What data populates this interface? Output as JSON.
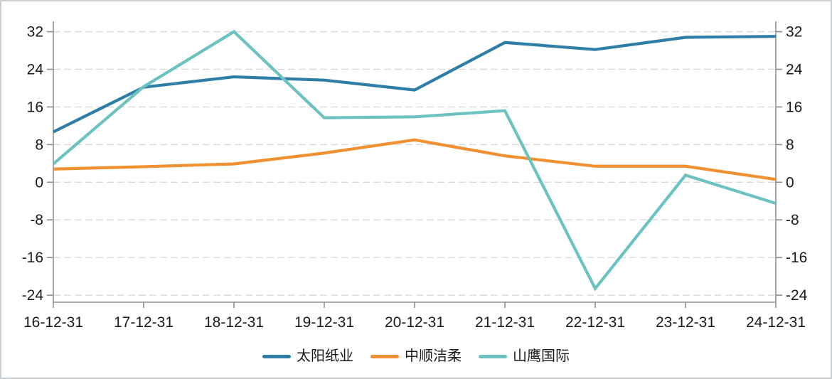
{
  "chart_data": {
    "type": "line",
    "x_labels": [
      "16-12-31",
      "17-12-31",
      "18-12-31",
      "19-12-31",
      "20-12-31",
      "21-12-31",
      "22-12-31",
      "23-12-31",
      "24-12-31"
    ],
    "y_axis": {
      "ticks": [
        32,
        24,
        16,
        8,
        0,
        -8,
        -16,
        -24
      ],
      "min": -25.5,
      "max": 34.2,
      "dual": true
    },
    "grid": {
      "horizontal": true,
      "style": "dashed"
    },
    "legend_position": "bottom-center",
    "series": [
      {
        "name": "太阳纸业",
        "color": "#2e7ea6",
        "values": [
          10.7,
          20.2,
          22.4,
          21.7,
          19.6,
          29.7,
          28.2,
          30.8,
          31.0
        ]
      },
      {
        "name": "中顺洁柔",
        "color": "#f09030",
        "values": [
          2.8,
          3.3,
          3.9,
          6.2,
          9.0,
          5.6,
          3.4,
          3.4,
          0.6
        ]
      },
      {
        "name": "山鹰国际",
        "color": "#6bc2c0",
        "values": [
          3.9,
          20.3,
          32.0,
          13.7,
          13.9,
          15.2,
          -22.6,
          1.5,
          -4.5
        ]
      }
    ]
  },
  "colors": {
    "background": "#ffffff",
    "border": "#cccfd2",
    "grid": "#d9d9d9",
    "axis": "#8f8f8f",
    "text": "#1a1a1a"
  }
}
